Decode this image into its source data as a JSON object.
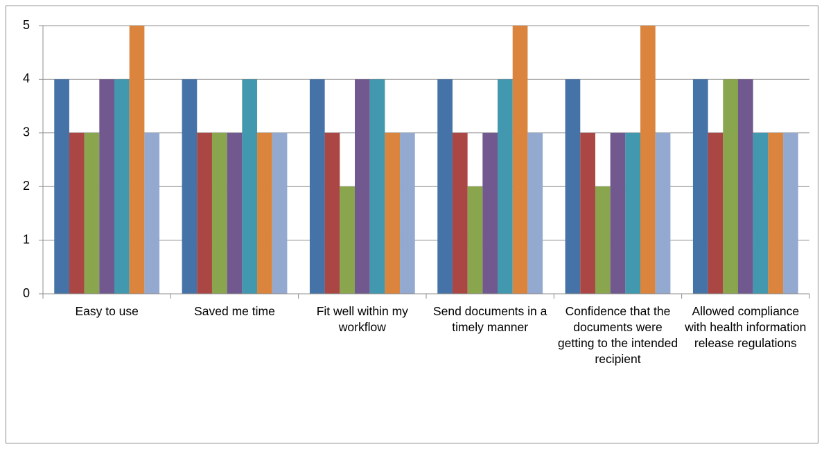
{
  "chart_data": {
    "type": "bar",
    "categories": [
      "Easy to use",
      "Saved me time",
      "Fit well within my workflow",
      "Send documents in a timely manner",
      "Confidence that the documents were getting to the intended recipient",
      "Allowed compliance with health information release regulations"
    ],
    "series": [
      {
        "color": "#4572a7",
        "values": [
          4,
          4,
          4,
          4,
          4,
          4
        ]
      },
      {
        "color": "#aa4643",
        "values": [
          3,
          3,
          3,
          3,
          3,
          3
        ]
      },
      {
        "color": "#89a54e",
        "values": [
          3,
          3,
          2,
          2,
          2,
          4
        ]
      },
      {
        "color": "#71588f",
        "values": [
          4,
          3,
          4,
          3,
          3,
          4
        ]
      },
      {
        "color": "#4198af",
        "values": [
          4,
          4,
          4,
          4,
          3,
          3
        ]
      },
      {
        "color": "#db843d",
        "values": [
          5,
          3,
          3,
          5,
          5,
          3
        ]
      },
      {
        "color": "#93a9cf",
        "values": [
          3,
          3,
          3,
          3,
          3,
          3
        ]
      }
    ],
    "ylim": [
      0,
      5
    ],
    "yticks": [
      0,
      1,
      2,
      3,
      4,
      5
    ],
    "grid": true
  }
}
